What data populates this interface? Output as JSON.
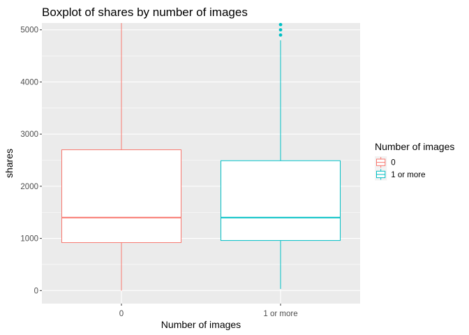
{
  "chart_data": {
    "type": "boxplot",
    "title": "Boxplot of shares by number of images",
    "xlabel": "Number of images",
    "ylabel": "shares",
    "categories": [
      "0",
      "1 or more"
    ],
    "ylim": [
      -250,
      5130
    ],
    "yticks": [
      0,
      1000,
      2000,
      3000,
      4000,
      5000
    ],
    "grid": true,
    "legend": {
      "title": "Number of images",
      "position": "right",
      "entries": [
        "0",
        "1 or more"
      ]
    },
    "series": [
      {
        "category": "0",
        "color": "#F8766D",
        "whisker_low": 0,
        "q1": 920,
        "median": 1400,
        "q3": 2700,
        "whisker_high": 5130,
        "outliers": []
      },
      {
        "category": "1 or more",
        "color": "#00BFC4",
        "whisker_low": 30,
        "q1": 960,
        "median": 1400,
        "q3": 2490,
        "whisker_high": 4800,
        "outliers": [
          4900,
          5000,
          5100
        ]
      }
    ]
  }
}
